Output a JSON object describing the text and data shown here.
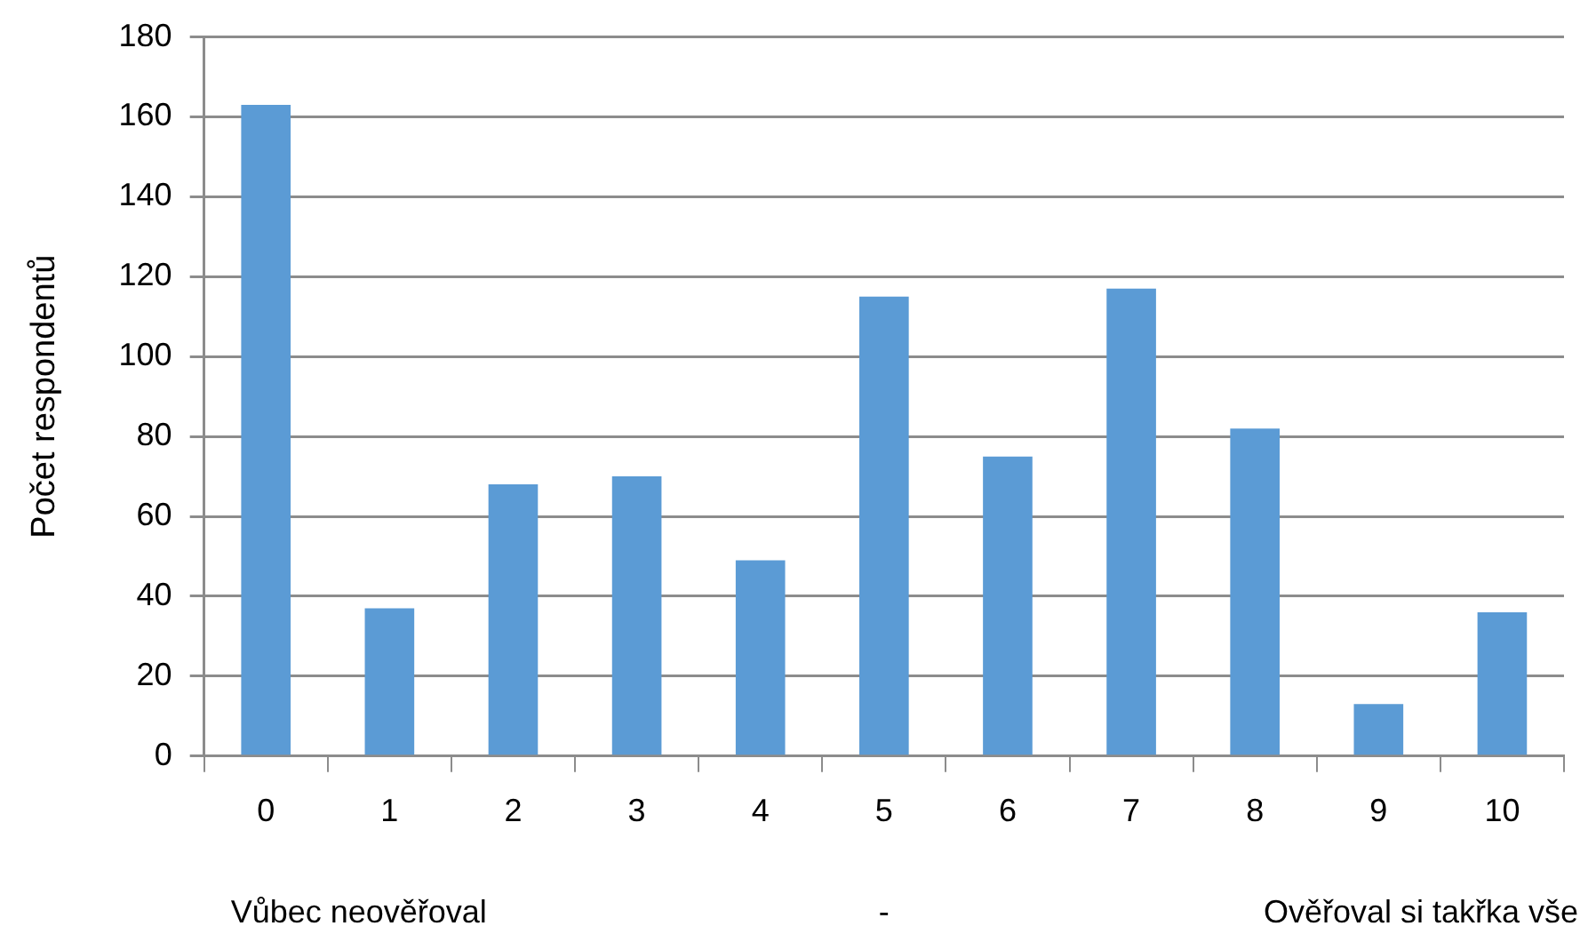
{
  "chart_data": {
    "type": "bar",
    "ylabel": "Počet respondentů",
    "categories": [
      "0",
      "1",
      "2",
      "3",
      "4",
      "5",
      "6",
      "7",
      "8",
      "9",
      "10"
    ],
    "values": [
      163,
      37,
      68,
      70,
      49,
      115,
      75,
      117,
      82,
      13,
      36
    ],
    "color": "#5b9bd5",
    "ylim": [
      0,
      180
    ],
    "yticks": [
      0,
      20,
      40,
      60,
      80,
      100,
      120,
      140,
      160,
      180
    ],
    "grid": "y",
    "legend": false,
    "annotations": [
      "Vůbec neověřoval",
      "-",
      "Ověřoval si takřka vše"
    ]
  }
}
